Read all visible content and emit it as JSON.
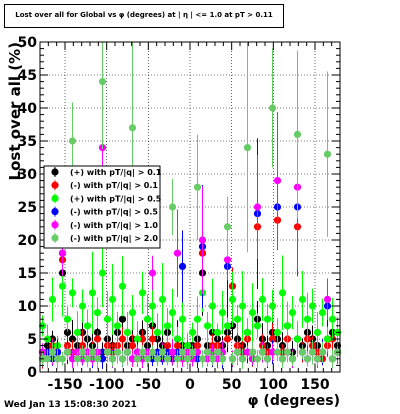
{
  "title": "Lost over all for Global vs φ (degrees) at | η | <= 1.0 at pT > 0.11",
  "timestamp": "Wed Jan 13 15:08:30 2021",
  "chart_data": {
    "type": "scatter",
    "title": "Lost over all for Global vs φ (degrees) at | η | <= 1.0 at pT > 0.11",
    "xlabel": "φ (degrees)",
    "ylabel": "Lost over all (%)",
    "xlim": [
      -180,
      180
    ],
    "ylim": [
      0,
      50
    ],
    "xticks": [
      -150,
      -100,
      -50,
      0,
      50,
      100,
      150
    ],
    "yticks": [
      0,
      5,
      10,
      15,
      20,
      25,
      30,
      35,
      40,
      45,
      50
    ],
    "grid": true,
    "legend_position": "middle-left",
    "series": [
      {
        "name": "(+) with pT/|q| > 0.1",
        "color": "#000000",
        "x": [
          -177,
          -171,
          -165,
          -159,
          -153,
          -147,
          -141,
          -135,
          -129,
          -123,
          -117,
          -111,
          -105,
          -99,
          -93,
          -87,
          -81,
          -75,
          -69,
          -63,
          -57,
          -51,
          -45,
          -39,
          -33,
          -27,
          -21,
          -15,
          -9,
          -3,
          3,
          9,
          15,
          21,
          27,
          33,
          39,
          45,
          51,
          57,
          63,
          69,
          75,
          81,
          87,
          93,
          99,
          105,
          111,
          117,
          123,
          129,
          135,
          141,
          147,
          153,
          159,
          165,
          171,
          177
        ],
        "y": [
          3,
          4,
          5,
          3,
          15,
          6,
          5,
          4,
          6,
          5,
          4,
          6,
          3,
          5,
          4,
          6,
          8,
          4,
          5,
          3,
          6,
          4,
          7,
          5,
          4,
          6,
          3,
          5,
          4,
          3,
          4,
          5,
          15,
          4,
          6,
          5,
          4,
          6,
          7,
          5,
          4,
          6,
          3,
          8,
          5,
          4,
          6,
          5,
          4,
          7,
          3,
          5,
          4,
          6,
          5,
          4,
          3,
          5,
          6,
          4
        ]
      },
      {
        "name": "(-) with pT/|q| > 0.1",
        "color": "#ff0000",
        "x": [
          -177,
          -171,
          -165,
          -159,
          -153,
          -147,
          -141,
          -135,
          -129,
          -123,
          -117,
          -111,
          -105,
          -99,
          -93,
          -87,
          -81,
          -75,
          -69,
          -63,
          -57,
          -51,
          -45,
          -39,
          -33,
          -27,
          -21,
          -15,
          -9,
          -3,
          3,
          9,
          15,
          21,
          27,
          33,
          39,
          45,
          51,
          57,
          63,
          69,
          75,
          81,
          87,
          93,
          99,
          105,
          111,
          117,
          123,
          129,
          135,
          141,
          147,
          153,
          159,
          165,
          171,
          177
        ],
        "y": [
          2,
          3,
          4,
          2,
          17,
          4,
          3,
          3,
          4,
          3,
          3,
          5,
          2,
          4,
          3,
          4,
          5,
          3,
          4,
          2,
          5,
          3,
          5,
          3,
          3,
          4,
          2,
          4,
          3,
          2,
          3,
          4,
          18,
          3,
          4,
          4,
          3,
          5,
          13,
          4,
          3,
          5,
          2,
          22,
          4,
          3,
          5,
          23,
          3,
          5,
          2,
          22,
          3,
          5,
          4,
          3,
          2,
          4,
          5,
          3
        ]
      },
      {
        "name": "(+) with pT/|q| > 0.5",
        "color": "#00ff00",
        "x": [
          -177,
          -171,
          -165,
          -159,
          -153,
          -147,
          -141,
          -135,
          -129,
          -123,
          -117,
          -111,
          -105,
          -99,
          -93,
          -87,
          -81,
          -75,
          -69,
          -63,
          -57,
          -51,
          -45,
          -39,
          -33,
          -27,
          -21,
          -15,
          -9,
          -3,
          3,
          9,
          15,
          21,
          27,
          33,
          39,
          45,
          51,
          57,
          63,
          69,
          75,
          81,
          87,
          93,
          99,
          105,
          111,
          117,
          123,
          129,
          135,
          141,
          147,
          153,
          159,
          165,
          171,
          177
        ],
        "y": [
          7,
          5,
          11,
          4,
          13,
          8,
          12,
          6,
          10,
          7,
          12,
          9,
          15,
          8,
          11,
          7,
          13,
          6,
          9,
          5,
          12,
          8,
          10,
          6,
          11,
          7,
          9,
          5,
          8,
          4,
          6,
          8,
          12,
          7,
          10,
          6,
          9,
          7,
          11,
          8,
          10,
          6,
          9,
          7,
          11,
          8,
          10,
          6,
          12,
          7,
          9,
          5,
          11,
          8,
          10,
          6,
          9,
          5,
          8,
          6
        ]
      },
      {
        "name": "(-) with pT/|q| > 0.5",
        "color": "#0000ff",
        "x": [
          -177,
          -171,
          -165,
          -159,
          -153,
          -147,
          -141,
          -135,
          -129,
          -123,
          -117,
          -111,
          -105,
          -99,
          -93,
          -87,
          -81,
          -75,
          -69,
          -63,
          -57,
          -51,
          -45,
          -39,
          -33,
          -27,
          -21,
          -15,
          -9,
          -3,
          3,
          9,
          15,
          21,
          27,
          33,
          39,
          45,
          51,
          57,
          63,
          69,
          75,
          81,
          87,
          93,
          99,
          105,
          111,
          117,
          123,
          129,
          135,
          141,
          147,
          153,
          159,
          165,
          171,
          177
        ],
        "y": [
          2,
          3,
          2,
          3,
          18,
          3,
          2,
          3,
          2,
          3,
          2,
          3,
          2,
          3,
          2,
          3,
          2,
          3,
          2,
          3,
          2,
          3,
          2,
          3,
          2,
          3,
          2,
          3,
          16,
          2,
          3,
          2,
          19,
          3,
          2,
          3,
          2,
          16,
          2,
          3,
          2,
          3,
          2,
          24,
          3,
          2,
          3,
          25,
          2,
          3,
          2,
          25,
          3,
          2,
          3,
          2,
          3,
          10,
          2,
          3
        ]
      },
      {
        "name": "(-) with pT/|q| > 1.0",
        "color": "#ff00ff",
        "x": [
          -177,
          -171,
          -165,
          -159,
          -153,
          -147,
          -141,
          -135,
          -129,
          -123,
          -117,
          -111,
          -105,
          -99,
          -93,
          -87,
          -81,
          -75,
          -69,
          -63,
          -57,
          -51,
          -45,
          -39,
          -33,
          -27,
          -21,
          -15,
          -9,
          -3,
          3,
          9,
          15,
          21,
          27,
          33,
          39,
          45,
          51,
          57,
          63,
          69,
          75,
          81,
          87,
          93,
          99,
          105,
          111,
          117,
          123,
          129,
          135,
          141,
          147,
          153,
          159,
          165,
          171,
          177
        ],
        "y": [
          3,
          2,
          3,
          2,
          18,
          3,
          2,
          3,
          2,
          3,
          2,
          3,
          34,
          3,
          2,
          3,
          2,
          3,
          2,
          3,
          2,
          3,
          15,
          2,
          3,
          2,
          3,
          18,
          2,
          3,
          2,
          3,
          20,
          2,
          3,
          2,
          3,
          17,
          2,
          3,
          2,
          3,
          2,
          25,
          3,
          2,
          3,
          29,
          2,
          3,
          2,
          28,
          3,
          2,
          3,
          2,
          3,
          11,
          2,
          3
        ]
      },
      {
        "name": "(-) with pT/|q| > 2.0",
        "color": "#66cc66",
        "x": [
          -177,
          -171,
          -165,
          -159,
          -153,
          -147,
          -141,
          -135,
          -129,
          -123,
          -117,
          -111,
          -105,
          -99,
          -93,
          -87,
          -81,
          -75,
          -69,
          -63,
          -57,
          -51,
          -45,
          -39,
          -33,
          -27,
          -21,
          -15,
          -9,
          -3,
          3,
          9,
          15,
          21,
          27,
          33,
          39,
          45,
          51,
          57,
          63,
          69,
          75,
          81,
          87,
          93,
          99,
          105,
          111,
          117,
          123,
          129,
          135,
          141,
          147,
          153,
          159,
          165,
          171,
          177
        ],
        "y": [
          2,
          2,
          3,
          2,
          2,
          3,
          35,
          2,
          3,
          2,
          3,
          2,
          44,
          3,
          2,
          3,
          2,
          3,
          37,
          2,
          3,
          2,
          3,
          2,
          3,
          2,
          25,
          2,
          3,
          2,
          3,
          28,
          2,
          3,
          2,
          3,
          2,
          22,
          2,
          3,
          2,
          34,
          3,
          2,
          3,
          2,
          40,
          3,
          2,
          3,
          2,
          36,
          3,
          2,
          3,
          2,
          3,
          33,
          2,
          3
        ]
      }
    ]
  }
}
